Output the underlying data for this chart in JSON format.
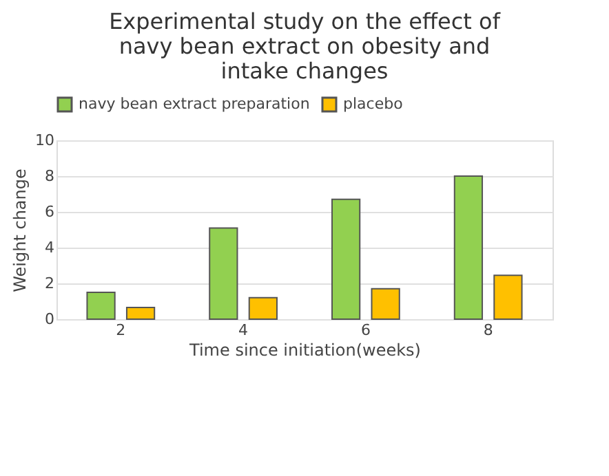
{
  "chart_data": {
    "type": "bar",
    "title": "Experimental study on the effect of navy bean extract on obesity and intake changes",
    "xlabel": "Time since initiation(weeks)",
    "ylabel": "Weight change",
    "categories": [
      "2",
      "4",
      "6",
      "8"
    ],
    "series": [
      {
        "name": "navy bean extract preparation",
        "color": "#92d050",
        "values": [
          1.5,
          5.1,
          6.7,
          8.0
        ]
      },
      {
        "name": "placebo",
        "color": "#ffc000",
        "values": [
          0.65,
          1.2,
          1.7,
          2.45
        ]
      }
    ],
    "ylim": [
      0,
      10
    ],
    "yticks": [
      0,
      2,
      4,
      6,
      8,
      10
    ],
    "grid": "y",
    "legend": "top"
  }
}
